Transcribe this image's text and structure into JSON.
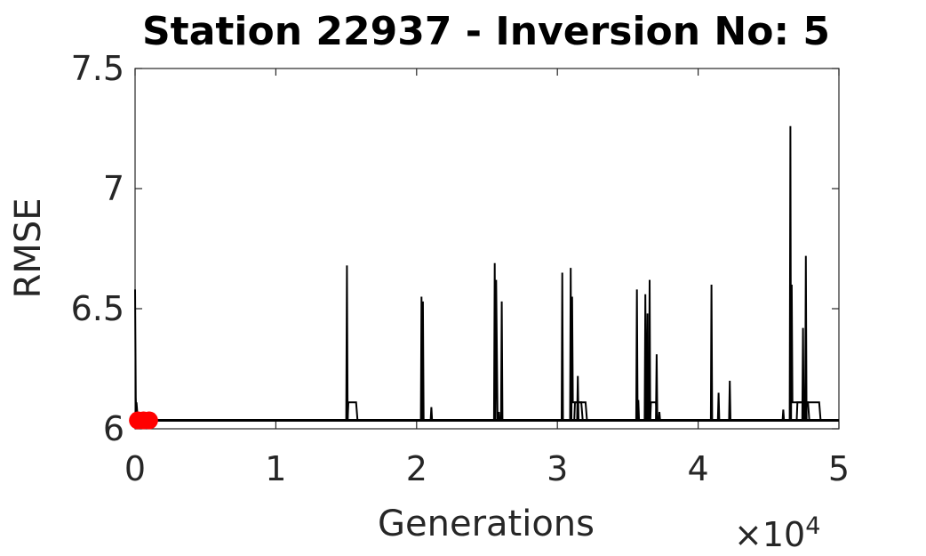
{
  "chart_data": {
    "type": "line",
    "title": "Station 22937 - Inversion No: 5",
    "xlabel": "Generations",
    "ylabel": "RMSE",
    "x_exponent_label": {
      "times": "×10",
      "power": "4"
    },
    "xlim": [
      0,
      5
    ],
    "ylim": [
      6,
      7.5
    ],
    "xticks": [
      0,
      1,
      2,
      3,
      4,
      5
    ],
    "yticks": [
      6,
      6.5,
      7,
      7.5
    ],
    "xtick_labels": [
      "0",
      "1",
      "2",
      "3",
      "4",
      "5"
    ],
    "ytick_labels": [
      "6",
      "6.5",
      "7",
      "7.5"
    ],
    "grid": false,
    "baseline": 6.035,
    "colors": {
      "line": "#000000",
      "marker": "#ff0000",
      "axis": "#262626"
    },
    "series": [
      {
        "values": [
          [
            0,
            6.58
          ],
          [
            0.005,
            6.13
          ],
          [
            0.01,
            6.035
          ],
          [
            1.5,
            6.035
          ],
          [
            1.505,
            6.68
          ],
          [
            1.51,
            6.035
          ],
          [
            2.03,
            6.035
          ],
          [
            2.035,
            6.55
          ],
          [
            2.04,
            6.035
          ],
          [
            2.1,
            6.035
          ],
          [
            2.105,
            6.09
          ],
          [
            2.11,
            6.035
          ],
          [
            2.55,
            6.035
          ],
          [
            2.555,
            6.69
          ],
          [
            2.56,
            6.035
          ],
          [
            2.6,
            6.035
          ],
          [
            2.605,
            6.53
          ],
          [
            2.61,
            6.035
          ],
          [
            3.03,
            6.035
          ],
          [
            3.035,
            6.65
          ],
          [
            3.04,
            6.035
          ],
          [
            3.09,
            6.035
          ],
          [
            3.095,
            6.67
          ],
          [
            3.1,
            6.035
          ],
          [
            3.14,
            6.035
          ],
          [
            3.145,
            6.22
          ],
          [
            3.15,
            6.035
          ],
          [
            3.56,
            6.035
          ],
          [
            3.565,
            6.58
          ],
          [
            3.57,
            6.035
          ],
          [
            3.65,
            6.035
          ],
          [
            3.655,
            6.62
          ],
          [
            3.66,
            6.035
          ],
          [
            3.7,
            6.035
          ],
          [
            3.705,
            6.31
          ],
          [
            3.71,
            6.035
          ],
          [
            4.09,
            6.035
          ],
          [
            4.095,
            6.6
          ],
          [
            4.1,
            6.035
          ],
          [
            4.22,
            6.035
          ],
          [
            4.225,
            6.2
          ],
          [
            4.23,
            6.035
          ],
          [
            4.6,
            6.035
          ],
          [
            4.605,
            6.08
          ],
          [
            4.61,
            6.035
          ],
          [
            4.65,
            6.035
          ],
          [
            4.655,
            7.26
          ],
          [
            4.66,
            6.035
          ],
          [
            4.74,
            6.035
          ],
          [
            4.745,
            6.42
          ],
          [
            4.75,
            6.035
          ],
          [
            4.76,
            6.035
          ],
          [
            4.765,
            6.72
          ],
          [
            4.77,
            6.035
          ],
          [
            5,
            6.035
          ]
        ]
      },
      {
        "values": [
          [
            0,
            6.035
          ],
          [
            0.01,
            6.11
          ],
          [
            0.02,
            6.035
          ],
          [
            1.51,
            6.035
          ],
          [
            1.515,
            6.11
          ],
          [
            1.57,
            6.11
          ],
          [
            1.58,
            6.035
          ],
          [
            2.04,
            6.035
          ],
          [
            2.045,
            6.53
          ],
          [
            2.05,
            6.035
          ],
          [
            2.56,
            6.035
          ],
          [
            2.565,
            6.62
          ],
          [
            2.575,
            6.035
          ],
          [
            3.1,
            6.035
          ],
          [
            3.105,
            6.55
          ],
          [
            3.11,
            6.11
          ],
          [
            3.17,
            6.11
          ],
          [
            3.18,
            6.035
          ],
          [
            3.57,
            6.035
          ],
          [
            3.575,
            6.12
          ],
          [
            3.58,
            6.035
          ],
          [
            3.62,
            6.035
          ],
          [
            3.625,
            6.56
          ],
          [
            3.63,
            6.035
          ],
          [
            3.635,
            6.035
          ],
          [
            3.64,
            6.48
          ],
          [
            3.645,
            6.035
          ],
          [
            3.66,
            6.035
          ],
          [
            3.665,
            6.11
          ],
          [
            3.7,
            6.11
          ],
          [
            3.71,
            6.035
          ],
          [
            4.14,
            6.035
          ],
          [
            4.145,
            6.15
          ],
          [
            4.15,
            6.035
          ],
          [
            4.66,
            6.035
          ],
          [
            4.665,
            6.6
          ],
          [
            4.67,
            6.11
          ],
          [
            4.78,
            6.11
          ],
          [
            4.79,
            6.035
          ],
          [
            5,
            6.035
          ]
        ]
      },
      {
        "values": [
          [
            0,
            6.035
          ],
          [
            0.02,
            6.035
          ],
          [
            0.025,
            6.07
          ],
          [
            0.03,
            6.035
          ],
          [
            2.58,
            6.035
          ],
          [
            2.585,
            6.07
          ],
          [
            2.59,
            6.035
          ],
          [
            3.12,
            6.035
          ],
          [
            3.125,
            6.11
          ],
          [
            3.2,
            6.11
          ],
          [
            3.21,
            6.035
          ],
          [
            3.72,
            6.035
          ],
          [
            3.725,
            6.07
          ],
          [
            3.73,
            6.035
          ],
          [
            4.7,
            6.035
          ],
          [
            4.705,
            6.11
          ],
          [
            4.86,
            6.11
          ],
          [
            4.87,
            6.035
          ],
          [
            5,
            6.035
          ]
        ]
      }
    ],
    "markers": [
      {
        "x": 0.02,
        "y": 6.035
      },
      {
        "x": 0.06,
        "y": 6.035
      },
      {
        "x": 0.1,
        "y": 6.035
      }
    ]
  }
}
